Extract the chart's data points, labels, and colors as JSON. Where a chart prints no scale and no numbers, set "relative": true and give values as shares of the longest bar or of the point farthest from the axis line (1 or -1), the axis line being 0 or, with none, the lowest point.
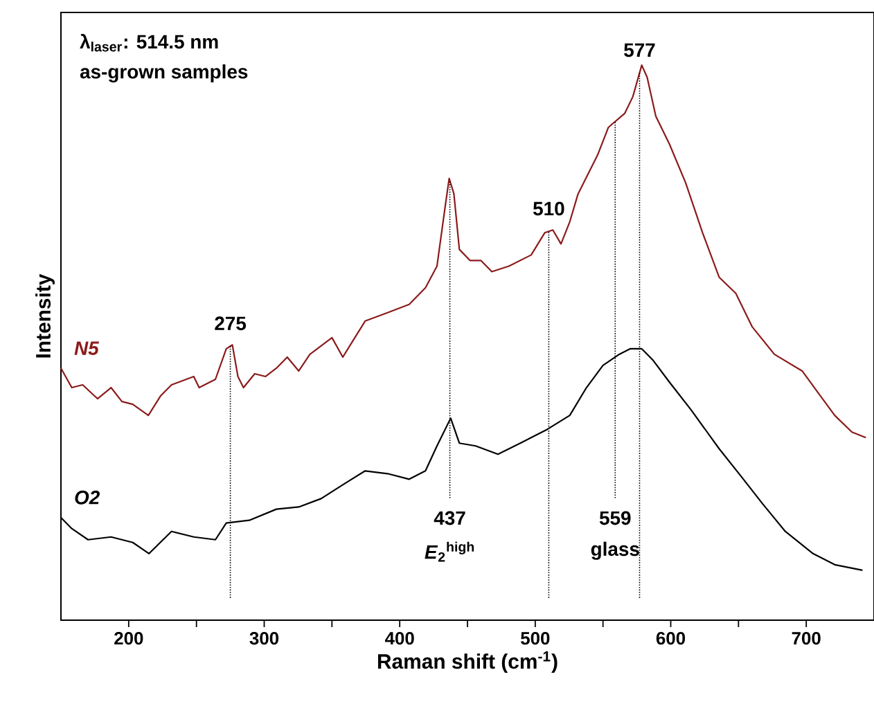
{
  "chart_data": {
    "type": "line",
    "xlabel": "Raman shift (cm$^{-1}$)",
    "ylabel": "Intensity",
    "relative": true,
    "marker": "none",
    "line_style": "solid",
    "grid": false,
    "tick_labels": "x",
    "xlim": [
      150,
      750
    ],
    "xticks": [
      200,
      {
        "value": 250,
        "label": null
      },
      300,
      {
        "value": 350,
        "label": null
      },
      400,
      {
        "value": 450,
        "label": null
      },
      500,
      {
        "value": 550,
        "label": null
      },
      600,
      {
        "value": 650,
        "label": null
      },
      700
    ],
    "series": [
      {
        "name": "N5",
        "color": "#8b1a1a",
        "x": [
          150,
          158,
          166,
          177,
          187,
          195,
          203,
          214.5,
          223.5,
          231.6,
          248,
          252,
          264,
          272,
          276.5,
          280.6,
          284.7,
          293,
          301,
          309,
          317,
          325.5,
          333.7,
          350,
          358,
          374.5,
          391,
          407,
          419,
          427.5,
          433.7,
          436.5,
          440,
          444,
          452,
          460,
          468,
          480.6,
          497,
          507,
          513,
          519,
          525.5,
          531.6,
          546,
          554,
          566,
          572,
          578.6,
          582.6,
          589,
          599,
          611,
          623.5,
          635.7,
          648,
          660,
          676.5,
          697,
          709,
          721,
          733.7,
          744
        ],
        "values": [
          0.454,
          0.419,
          0.424,
          0.399,
          0.419,
          0.394,
          0.389,
          0.369,
          0.404,
          0.424,
          0.439,
          0.419,
          0.434,
          0.489,
          0.496,
          0.439,
          0.419,
          0.444,
          0.439,
          0.454,
          0.474,
          0.449,
          0.479,
          0.509,
          0.474,
          0.539,
          0.554,
          0.569,
          0.599,
          0.638,
          0.748,
          0.796,
          0.768,
          0.668,
          0.648,
          0.648,
          0.628,
          0.638,
          0.658,
          0.698,
          0.703,
          0.678,
          0.718,
          0.768,
          0.838,
          0.888,
          0.913,
          0.943,
          1.0,
          0.978,
          0.908,
          0.858,
          0.788,
          0.698,
          0.618,
          0.589,
          0.529,
          0.479,
          0.449,
          0.409,
          0.369,
          0.339,
          0.329
        ]
      },
      {
        "name": "O2",
        "color": "#000000",
        "x": [
          150,
          158,
          170,
          187,
          203,
          215,
          231.6,
          248,
          264,
          272,
          289,
          309,
          325.5,
          342,
          358,
          374.5,
          391,
          407,
          419,
          427.5,
          437.6,
          444,
          456,
          472.5,
          489,
          509,
          525.5,
          537.8,
          550,
          562,
          570,
          578.6,
          586.7,
          599,
          615,
          635.7,
          652,
          668,
          684.5,
          705,
          721,
          741.5
        ],
        "values": [
          0.185,
          0.165,
          0.145,
          0.15,
          0.14,
          0.12,
          0.16,
          0.15,
          0.145,
          0.175,
          0.18,
          0.2,
          0.204,
          0.219,
          0.244,
          0.269,
          0.264,
          0.254,
          0.269,
          0.314,
          0.364,
          0.319,
          0.314,
          0.299,
          0.319,
          0.344,
          0.369,
          0.419,
          0.459,
          0.479,
          0.489,
          0.489,
          0.469,
          0.429,
          0.379,
          0.309,
          0.259,
          0.209,
          0.16,
          0.12,
          0.1,
          0.09
        ]
      }
    ],
    "ref_lines": [
      {
        "axis": "x",
        "value": 275,
        "color": "#000000",
        "line_style": "dotted",
        "label": "275"
      },
      {
        "axis": "x",
        "value": 437,
        "color": "#000000",
        "line_style": "dotted",
        "label": "437"
      },
      {
        "axis": "x",
        "value": 510,
        "color": "#000000",
        "line_style": "dotted",
        "label": "510"
      },
      {
        "axis": "x",
        "value": 559,
        "color": "#000000",
        "line_style": "dotted",
        "label": "559"
      },
      {
        "axis": "x",
        "value": 577,
        "color": "#000000",
        "line_style": "dotted",
        "label": "577"
      }
    ],
    "annotations": [
      "λ$_{laser}$: 514.5 nm",
      "as-grown samples",
      "*E*$_{2}$$^{high}$",
      "glass"
    ]
  }
}
